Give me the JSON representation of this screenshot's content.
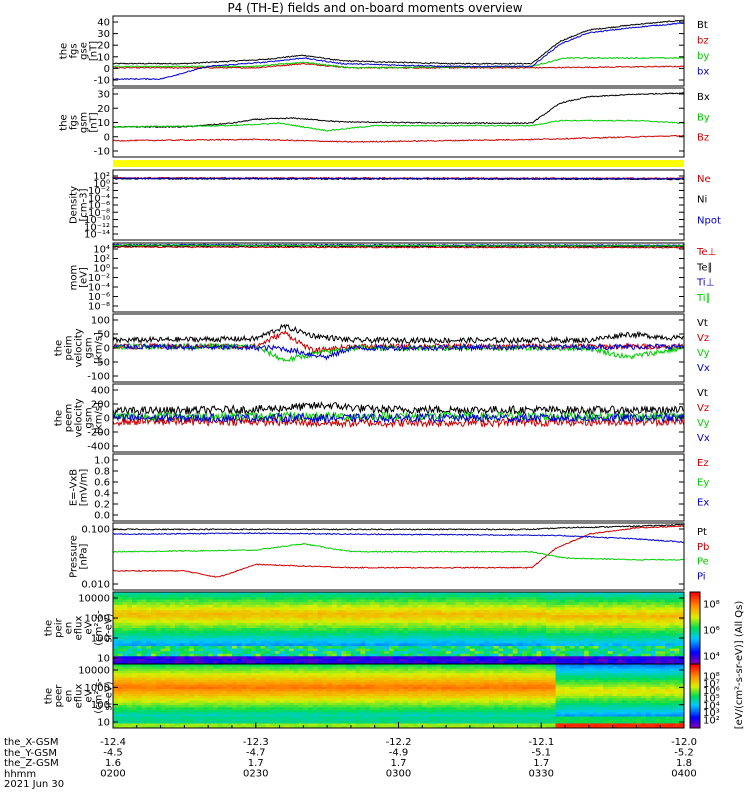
{
  "title": "P4 (TH-E) fields and on-board moments overview",
  "chart_data": {
    "type": "line",
    "xlim": [
      0,
      120
    ],
    "x_tick_labels": [
      "-12.4",
      "-12.3",
      "-12.2",
      "-12.1",
      "-12.0"
    ],
    "x_ticks": [
      0,
      30,
      60,
      90,
      120
    ],
    "ephemeris": {
      "rows": [
        {
          "name": "the_X-GSM",
          "values": [
            "-12.4",
            "-12.3",
            "-12.2",
            "-12.1",
            "-12.0"
          ]
        },
        {
          "name": "the_Y-GSM",
          "values": [
            "-4.5",
            "-4.7",
            "-4.9",
            "-5.1",
            "-5.2"
          ]
        },
        {
          "name": "the_Z-GSM",
          "values": [
            "1.6",
            "1.7",
            "1.7",
            "1.7",
            "1.8"
          ]
        },
        {
          "name": "hhmm",
          "values": [
            "0200",
            "0230",
            "0300",
            "0330",
            "0400"
          ]
        }
      ],
      "date": "2021 Jun 30"
    },
    "panels": [
      {
        "id": "fgs-gse",
        "ylabel": [
          "the",
          "fgs",
          "gse",
          "[nT]"
        ],
        "yticks": [
          "40",
          "30",
          "20",
          "10",
          "0",
          "-10"
        ],
        "ylim": [
          -10,
          40
        ],
        "series": [
          {
            "name": "Bt",
            "color": "#000000",
            "profile": [
              [
                0,
                6
              ],
              [
                15,
                6
              ],
              [
                32,
                9
              ],
              [
                40,
                12
              ],
              [
                48,
                8
              ],
              [
                70,
                6
              ],
              [
                88,
                6
              ],
              [
                94,
                22
              ],
              [
                100,
                30
              ],
              [
                110,
                34
              ],
              [
                120,
                37
              ]
            ]
          },
          {
            "name": "bz",
            "color": "#cc0000",
            "profile": [
              [
                0,
                3
              ],
              [
                30,
                3
              ],
              [
                40,
                6
              ],
              [
                50,
                3
              ],
              [
                88,
                3
              ],
              [
                120,
                4
              ]
            ]
          },
          {
            "name": "by",
            "color": "#00cc00",
            "profile": [
              [
                0,
                4
              ],
              [
                30,
                4
              ],
              [
                40,
                7
              ],
              [
                50,
                3
              ],
              [
                88,
                4
              ],
              [
                95,
                10
              ],
              [
                120,
                10
              ]
            ]
          },
          {
            "name": "bx",
            "color": "#0000cc",
            "profile": [
              [
                0,
                -5
              ],
              [
                10,
                -5
              ],
              [
                20,
                4
              ],
              [
                32,
                7
              ],
              [
                40,
                10
              ],
              [
                48,
                6
              ],
              [
                70,
                4
              ],
              [
                88,
                4
              ],
              [
                94,
                20
              ],
              [
                100,
                28
              ],
              [
                110,
                32
              ],
              [
                120,
                35
              ]
            ]
          }
        ]
      },
      {
        "id": "fgs-gsm",
        "ylabel": [
          "the",
          "fgs",
          "gsm",
          "[nT]"
        ],
        "yticks": [
          "30",
          "20",
          "10",
          "0",
          "-10"
        ],
        "ylim": [
          -15,
          40
        ],
        "series": [
          {
            "name": "Bx",
            "color": "#000000",
            "profile": [
              [
                0,
                9
              ],
              [
                15,
                9
              ],
              [
                25,
                12
              ],
              [
                30,
                15
              ],
              [
                38,
                16
              ],
              [
                48,
                13
              ],
              [
                70,
                12
              ],
              [
                88,
                12
              ],
              [
                94,
                28
              ],
              [
                100,
                33
              ],
              [
                110,
                35
              ],
              [
                120,
                36
              ]
            ]
          },
          {
            "name": "By",
            "color": "#00cc00",
            "profile": [
              [
                0,
                9
              ],
              [
                25,
                10
              ],
              [
                35,
                12
              ],
              [
                45,
                6
              ],
              [
                55,
                10
              ],
              [
                88,
                10
              ],
              [
                94,
                14
              ],
              [
                110,
                14
              ],
              [
                120,
                12
              ]
            ]
          },
          {
            "name": "Bz",
            "color": "#cc0000",
            "profile": [
              [
                0,
                -2
              ],
              [
                30,
                -1
              ],
              [
                50,
                -3
              ],
              [
                88,
                -1
              ],
              [
                120,
                2
              ]
            ]
          }
        ]
      },
      {
        "id": "density",
        "ylabel": [
          "Density",
          "[cm-3]"
        ],
        "yticks": [
          "10²",
          "10⁰",
          "10⁻²",
          "10⁻⁴",
          "10⁻⁶",
          "10⁻⁸",
          "10⁻¹⁰",
          "10⁻¹²",
          "10⁻¹⁴"
        ],
        "ylim": [
          -14,
          2
        ],
        "series": [
          {
            "name": "Ne",
            "color": "#cc0000",
            "profile": [
              [
                0,
                0.2
              ],
              [
                120,
                0.1
              ]
            ]
          },
          {
            "name": "Ni",
            "color": "#000000",
            "profile": [
              [
                0,
                0.0
              ],
              [
                120,
                -0.1
              ]
            ]
          },
          {
            "name": "Npot",
            "color": "#0000cc",
            "profile": [
              [
                0,
                0.1
              ],
              [
                120,
                0.0
              ]
            ]
          }
        ]
      },
      {
        "id": "mom-temp",
        "ylabel": [
          "mom",
          "[eV]"
        ],
        "yticks": [
          "10⁴",
          "10²",
          "10⁰",
          "10⁻²",
          "10⁻⁴",
          "10⁻⁶",
          "10⁻⁸"
        ],
        "ylim": [
          -8,
          4
        ],
        "series": [
          {
            "name": "Te⊥",
            "color": "#cc0000",
            "profile": [
              [
                0,
                3.3
              ],
              [
                120,
                3.2
              ]
            ]
          },
          {
            "name": "Te∥",
            "color": "#000000",
            "profile": [
              [
                0,
                3.5
              ],
              [
                120,
                3.4
              ]
            ]
          },
          {
            "name": "Ti⊥",
            "color": "#0000cc",
            "profile": [
              [
                0,
                3.7
              ],
              [
                120,
                3.6
              ]
            ]
          },
          {
            "name": "Ti∥",
            "color": "#00cc00",
            "profile": [
              [
                0,
                3.6
              ],
              [
                120,
                3.5
              ]
            ]
          }
        ]
      },
      {
        "id": "peim-vel",
        "ylabel": [
          "the",
          "peim",
          "velocity",
          "gsm",
          "[km/s]"
        ],
        "yticks": [
          "100",
          "50",
          "0",
          "-50",
          "-100"
        ],
        "ylim": [
          -110,
          110
        ],
        "series": [
          {
            "name": "Vt",
            "color": "#000000",
            "profile": [
              [
                0,
                25
              ],
              [
                30,
                30
              ],
              [
                36,
                70
              ],
              [
                42,
                40
              ],
              [
                50,
                25
              ],
              [
                100,
                25
              ],
              [
                108,
                45
              ],
              [
                120,
                30
              ]
            ]
          },
          {
            "name": "Vz",
            "color": "#cc0000",
            "profile": [
              [
                0,
                5
              ],
              [
                30,
                5
              ],
              [
                36,
                50
              ],
              [
                42,
                -10
              ],
              [
                50,
                5
              ],
              [
                120,
                5
              ]
            ]
          },
          {
            "name": "Vy",
            "color": "#00cc00",
            "profile": [
              [
                0,
                5
              ],
              [
                30,
                5
              ],
              [
                36,
                -40
              ],
              [
                42,
                -20
              ],
              [
                50,
                0
              ],
              [
                100,
                0
              ],
              [
                108,
                -30
              ],
              [
                120,
                0
              ]
            ]
          },
          {
            "name": "Vx",
            "color": "#0000cc",
            "profile": [
              [
                0,
                5
              ],
              [
                35,
                0
              ],
              [
                45,
                -30
              ],
              [
                50,
                0
              ],
              [
                120,
                5
              ]
            ]
          }
        ]
      },
      {
        "id": "peem-vel",
        "ylabel": [
          "the",
          "peem",
          "velocity",
          "gsm",
          "[km/s]"
        ],
        "yticks": [
          "400",
          "200",
          "0",
          "-200",
          "-400"
        ],
        "ylim": [
          -400,
          400
        ],
        "series": [
          {
            "name": "Vt",
            "color": "#000000",
            "profile": [
              [
                0,
                80
              ],
              [
                30,
                100
              ],
              [
                45,
                150
              ],
              [
                55,
                100
              ],
              [
                120,
                90
              ]
            ]
          },
          {
            "name": "Vz",
            "color": "#cc0000",
            "profile": [
              [
                0,
                -40
              ],
              [
                30,
                -40
              ],
              [
                45,
                -60
              ],
              [
                120,
                -40
              ]
            ]
          },
          {
            "name": "Vy",
            "color": "#00cc00",
            "profile": [
              [
                0,
                20
              ],
              [
                120,
                20
              ]
            ]
          },
          {
            "name": "Vx",
            "color": "#0000cc",
            "profile": [
              [
                0,
                0
              ],
              [
                120,
                0
              ]
            ]
          }
        ]
      },
      {
        "id": "e-field",
        "ylabel": [
          "E=-VxB",
          "[mV/m]"
        ],
        "yticks": [
          "1.0",
          "0.8",
          "0.6",
          "0.4",
          "0.2",
          "0.0"
        ],
        "ylim": [
          0,
          1
        ],
        "series": [
          {
            "name": "Ez",
            "color": "#cc0000",
            "profile": []
          },
          {
            "name": "Ey",
            "color": "#00cc00",
            "profile": []
          },
          {
            "name": "Ex",
            "color": "#0000cc",
            "profile": []
          }
        ]
      },
      {
        "id": "pressure",
        "ylabel": [
          "Pressure",
          "[nPa]"
        ],
        "yticks": [
          "0.100",
          "0.010"
        ],
        "ylim": [
          -2.5,
          -0.4
        ],
        "series": [
          {
            "name": "Pt",
            "color": "#000000",
            "profile": [
              [
                0,
                -0.6
              ],
              [
                30,
                -0.6
              ],
              [
                88,
                -0.6
              ],
              [
                95,
                -0.55
              ],
              [
                110,
                -0.5
              ],
              [
                120,
                -0.45
              ]
            ]
          },
          {
            "name": "Pb",
            "color": "#cc0000",
            "profile": [
              [
                0,
                -1.9
              ],
              [
                15,
                -1.9
              ],
              [
                22,
                -2.1
              ],
              [
                30,
                -1.7
              ],
              [
                50,
                -1.8
              ],
              [
                88,
                -1.8
              ],
              [
                93,
                -1.2
              ],
              [
                100,
                -0.75
              ],
              [
                110,
                -0.55
              ],
              [
                120,
                -0.5
              ]
            ]
          },
          {
            "name": "Pe",
            "color": "#00cc00",
            "profile": [
              [
                0,
                -1.3
              ],
              [
                30,
                -1.25
              ],
              [
                40,
                -1.05
              ],
              [
                50,
                -1.3
              ],
              [
                88,
                -1.3
              ],
              [
                95,
                -1.5
              ],
              [
                110,
                -1.55
              ],
              [
                120,
                -1.55
              ]
            ]
          },
          {
            "name": "Pi",
            "color": "#0000cc",
            "profile": [
              [
                0,
                -0.75
              ],
              [
                30,
                -0.72
              ],
              [
                50,
                -0.75
              ],
              [
                88,
                -0.78
              ],
              [
                95,
                -0.8
              ],
              [
                110,
                -0.9
              ],
              [
                120,
                -1.0
              ]
            ]
          }
        ]
      },
      {
        "id": "peir-spec",
        "type": "heatmap",
        "ylabel": [
          "the",
          "peir",
          "en",
          "eflux",
          "eV",
          "(cm²-s-",
          "sr-eV)"
        ],
        "yticks": [
          "10000",
          "1000",
          "100",
          "10"
        ],
        "ylim": [
          0.7,
          4.5
        ],
        "colorbar": {
          "ticks": [
            "10⁸",
            "10⁶",
            "10⁴"
          ],
          "vlim": [
            2,
            9
          ]
        }
      },
      {
        "id": "peer-spec",
        "type": "heatmap",
        "ylabel": [
          "the",
          "peer",
          "en",
          "eflux",
          "eV",
          "(cm²-s-",
          "sr-eV)"
        ],
        "yticks": [
          "10000",
          "1000",
          "100",
          "10"
        ],
        "ylim": [
          0.9,
          4.2
        ],
        "colorbar": {
          "ticks": [
            "10⁸",
            "10⁷",
            "10⁶",
            "10⁵",
            "10⁴",
            "10³",
            "10²"
          ],
          "vlim": [
            2,
            9
          ]
        }
      }
    ],
    "colorbar_label": "[eV/(cm²-s-sr-eV)] (All Qs)"
  }
}
